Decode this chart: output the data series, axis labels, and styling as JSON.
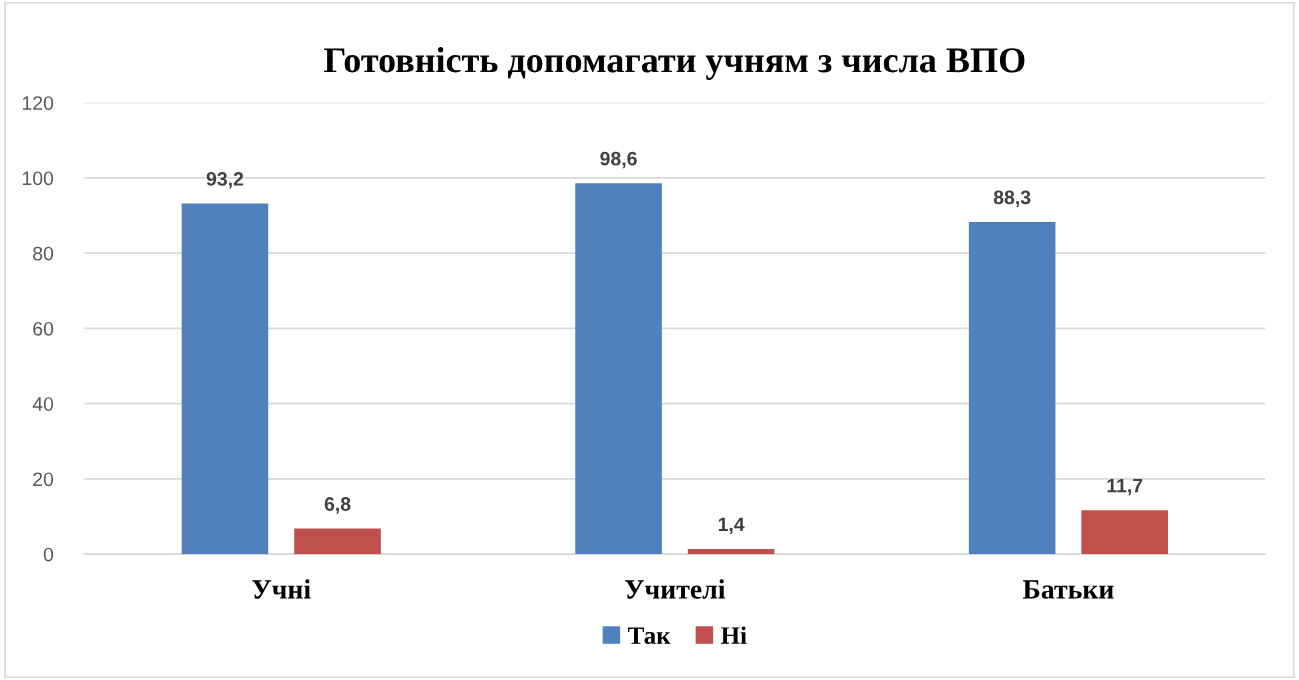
{
  "chart_data": {
    "type": "bar",
    "title": "Готовність допомагати учням з числа ВПО",
    "categories": [
      "Учні",
      "Учителі",
      "Батьки"
    ],
    "series": [
      {
        "name": "Так",
        "color": "#4f81bd",
        "values": [
          93.2,
          98.6,
          88.3
        ],
        "value_labels": [
          "93,2",
          "98,6",
          "88,3"
        ]
      },
      {
        "name": "Ні",
        "color": "#c0504d",
        "values": [
          6.8,
          1.4,
          11.7
        ],
        "value_labels": [
          "6,8",
          "1,4",
          "11,7"
        ]
      }
    ],
    "ylim": [
      0,
      120
    ],
    "yticks": [
      0,
      20,
      40,
      60,
      80,
      100,
      120
    ],
    "grid": "y",
    "legend": "bottom"
  }
}
